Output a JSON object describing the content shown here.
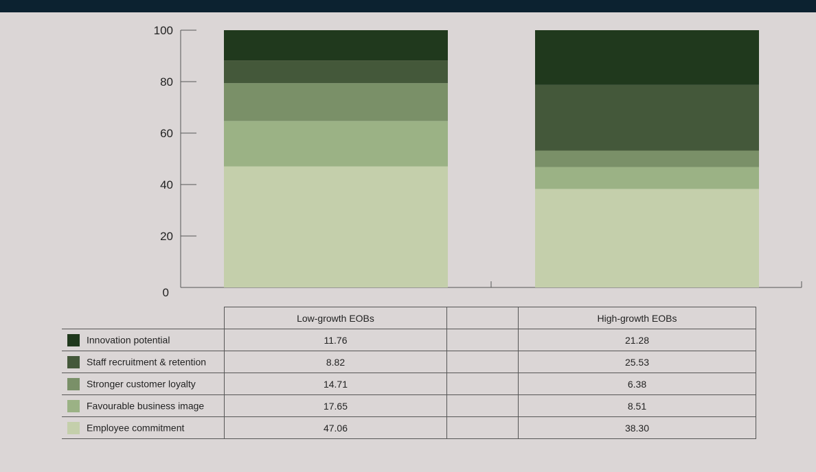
{
  "chart_data": {
    "type": "bar",
    "stacked": true,
    "categories": [
      "Low-growth EOBs",
      "High-growth EOBs"
    ],
    "ylim": [
      0,
      100
    ],
    "yticks": [
      0,
      20,
      40,
      60,
      80,
      100
    ],
    "series": [
      {
        "name": "Employee commitment",
        "color": "#c4cfab",
        "values": [
          47.06,
          38.3
        ]
      },
      {
        "name": "Favourable business image",
        "color": "#9bb285",
        "values": [
          17.65,
          8.51
        ]
      },
      {
        "name": "Stronger customer loyalty",
        "color": "#7a9068",
        "values": [
          14.71,
          6.38
        ]
      },
      {
        "name": "Staff recruitment & retention",
        "color": "#44583a",
        "values": [
          8.82,
          25.53
        ]
      },
      {
        "name": "Innovation potential",
        "color": "#20391d",
        "values": [
          11.76,
          21.28
        ]
      }
    ]
  },
  "table": {
    "headers": [
      "Low-growth EOBs",
      "High-growth EOBs"
    ],
    "rows": [
      {
        "label": "Innovation potential",
        "low": "11.76",
        "high": "21.28",
        "color": "#20391d"
      },
      {
        "label": "Staff recruitment & retention",
        "low": "8.82",
        "high": "25.53",
        "color": "#44583a"
      },
      {
        "label": "Stronger customer loyalty",
        "low": "14.71",
        "high": "6.38",
        "color": "#7a9068"
      },
      {
        "label": "Favourable business image",
        "low": "17.65",
        "high": "8.51",
        "color": "#9bb285"
      },
      {
        "label": "Employee commitment",
        "low": "47.06",
        "high": "38.30",
        "color": "#c4cfab"
      }
    ]
  }
}
